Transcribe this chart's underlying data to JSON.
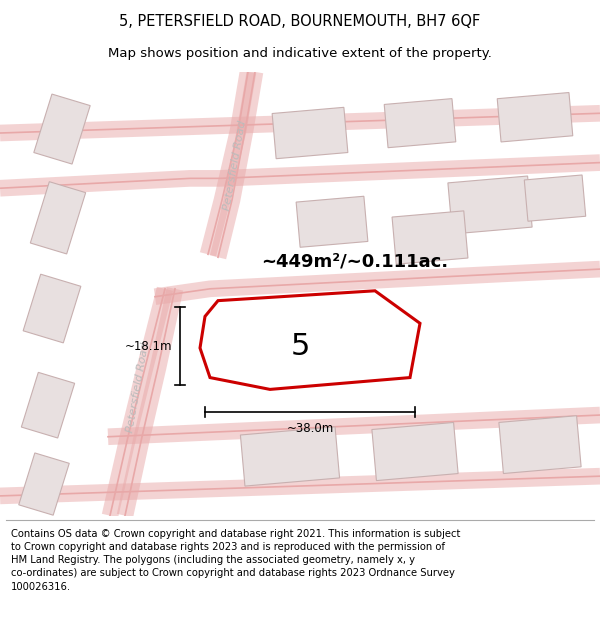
{
  "title": "5, PETERSFIELD ROAD, BOURNEMOUTH, BH7 6QF",
  "subtitle": "Map shows position and indicative extent of the property.",
  "footer": "Contains OS data © Crown copyright and database right 2021. This information is subject\nto Crown copyright and database rights 2023 and is reproduced with the permission of\nHM Land Registry. The polygons (including the associated geometry, namely x, y\nco-ordinates) are subject to Crown copyright and database rights 2023 Ordnance Survey\n100026316.",
  "map_bg": "#f7f3f3",
  "road_color": "#e8a8a8",
  "road_lw": 1.2,
  "building_fill": "#e8e0e0",
  "building_edge": "#c8b0b0",
  "highlight_fill": "#ffffff",
  "highlight_edge": "#cc0000",
  "area_text": "~449m²/~0.111ac.",
  "label": "5",
  "width_label": "~38.0m",
  "height_label": "~18.1m",
  "title_fontsize": 10.5,
  "subtitle_fontsize": 9.5,
  "footer_fontsize": 7.2
}
